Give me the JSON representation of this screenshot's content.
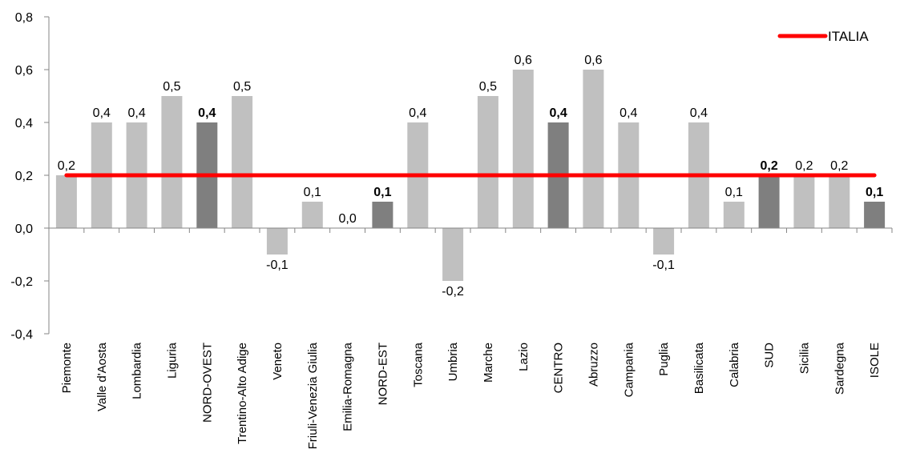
{
  "chart_data": {
    "type": "bar",
    "categories": [
      "Piemonte",
      "Valle d'Aosta",
      "Lombardia",
      "Liguria",
      "NORD-OVEST",
      "Trentino-Alto Adige",
      "Veneto",
      "Friuli-Venezia Giulia",
      "Emilia-Romagna",
      "NORD-EST",
      "Toscana",
      "Umbria",
      "Marche",
      "Lazio",
      "CENTRO",
      "Abruzzo",
      "Campania",
      "Puglia",
      "Basilicata",
      "Calabria",
      "SUD",
      "Sicilia",
      "Sardegna",
      "ISOLE"
    ],
    "values": [
      0.2,
      0.4,
      0.4,
      0.5,
      0.4,
      0.5,
      -0.1,
      0.1,
      0.0,
      0.1,
      0.4,
      -0.2,
      0.5,
      0.6,
      0.4,
      0.6,
      0.4,
      -0.1,
      0.4,
      0.1,
      0.2,
      0.2,
      0.2,
      0.1
    ],
    "value_labels": [
      "0,2",
      "0,4",
      "0,4",
      "0,5",
      "0,4",
      "0,5",
      "-0,1",
      "0,1",
      "0,0",
      "0,1",
      "0,4",
      "-0,2",
      "0,5",
      "0,6",
      "0,4",
      "0,6",
      "0,4",
      "-0,1",
      "0,4",
      "0,1",
      "0,2",
      "0,2",
      "0,2",
      "0,1"
    ],
    "macro_area": [
      false,
      false,
      false,
      false,
      true,
      false,
      false,
      false,
      false,
      true,
      false,
      false,
      false,
      false,
      true,
      false,
      false,
      false,
      false,
      false,
      true,
      false,
      false,
      true
    ],
    "reference_line": {
      "name": "ITALIA",
      "value": 0.2,
      "color": "#ff0000"
    },
    "legend": {
      "label": "ITALIA",
      "position": "top-right"
    },
    "ylim": [
      -0.4,
      0.8
    ],
    "yticks": [
      0.8,
      0.6,
      0.4,
      0.2,
      0.0,
      -0.2,
      -0.4
    ],
    "ytick_labels": [
      "0,8",
      "0,6",
      "0,4",
      "0,2",
      "0,0",
      "-0,2",
      "-0,4"
    ],
    "grid": false,
    "title": "",
    "xlabel": "",
    "ylabel": "",
    "colors": {
      "region_bar": "#c0c0c0",
      "macro_bar": "#7f7f7f",
      "axis": "#868686"
    }
  }
}
